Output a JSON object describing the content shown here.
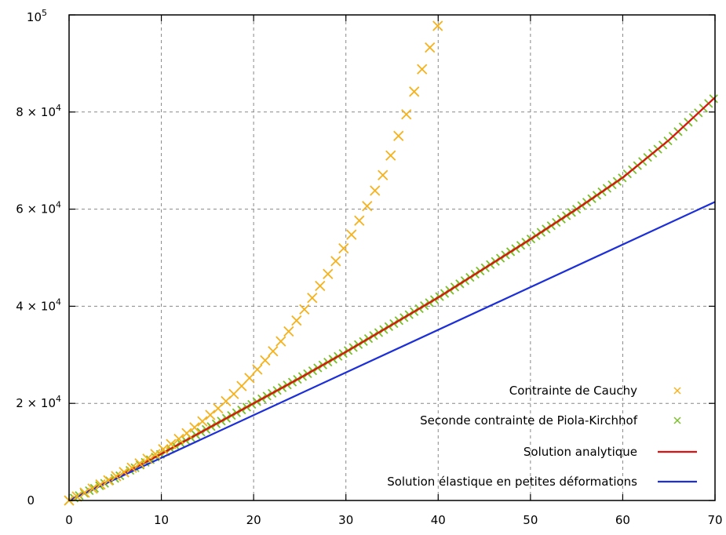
{
  "chart_data": {
    "type": "scatter",
    "title": "",
    "xlabel": "",
    "ylabel": "",
    "xlim": [
      0,
      70
    ],
    "ylim": [
      0,
      100000
    ],
    "grid": true,
    "x_ticks": [
      0,
      10,
      20,
      30,
      40,
      50,
      60,
      70
    ],
    "x_tick_labels": [
      "0",
      "10",
      "20",
      "30",
      "40",
      "50",
      "60",
      "70"
    ],
    "y_ticks": [
      0,
      20000,
      40000,
      60000,
      80000,
      100000
    ],
    "y_tick_labels": [
      {
        "mantissa": "0",
        "exponent": ""
      },
      {
        "mantissa": "2 × 10",
        "exponent": "4"
      },
      {
        "mantissa": "4 × 10",
        "exponent": "4"
      },
      {
        "mantissa": "6 × 10",
        "exponent": "4"
      },
      {
        "mantissa": "8 × 10",
        "exponent": "4"
      },
      {
        "mantissa": "10",
        "exponent": "5"
      }
    ],
    "legend_position": "bottom-right",
    "series": [
      {
        "name": "Contrainte de Cauchy",
        "style": "marker-x",
        "color": "#f5b21d",
        "x": [
          0,
          2,
          4,
          6,
          8,
          10,
          12,
          14,
          16,
          18,
          20,
          22,
          24,
          26,
          28,
          30,
          32,
          34,
          36,
          38,
          40
        ],
        "y": [
          0,
          1900,
          3900,
          5900,
          8000,
          10300,
          12800,
          15600,
          18700,
          22200,
          26100,
          30500,
          35300,
          40700,
          46500,
          52700,
          59500,
          67000,
          76500,
          87500,
          98000
        ]
      },
      {
        "name": "Seconde contrainte de Piola-Kirchhof",
        "style": "marker-x",
        "color": "#79bf2a",
        "x": [
          0,
          5,
          10,
          15,
          20,
          25,
          30,
          35,
          40,
          45,
          50,
          55,
          60,
          65,
          70
        ],
        "y": [
          0,
          4600,
          9600,
          14800,
          20000,
          25200,
          30600,
          36200,
          41800,
          47800,
          53800,
          60000,
          66500,
          74200,
          83000
        ]
      },
      {
        "name": "Solution analytique",
        "style": "line",
        "color": "#dd1111",
        "x": [
          0,
          5,
          10,
          15,
          20,
          25,
          30,
          35,
          40,
          45,
          50,
          55,
          60,
          65,
          70
        ],
        "y": [
          0,
          4600,
          9600,
          14800,
          20000,
          25200,
          30600,
          36200,
          41800,
          47800,
          53800,
          60000,
          66500,
          74200,
          83000
        ]
      },
      {
        "name": "Solution élastique en petites déformations",
        "style": "line",
        "color": "#1c2fd8",
        "x": [
          0,
          70
        ],
        "y": [
          0,
          61500
        ]
      }
    ]
  }
}
